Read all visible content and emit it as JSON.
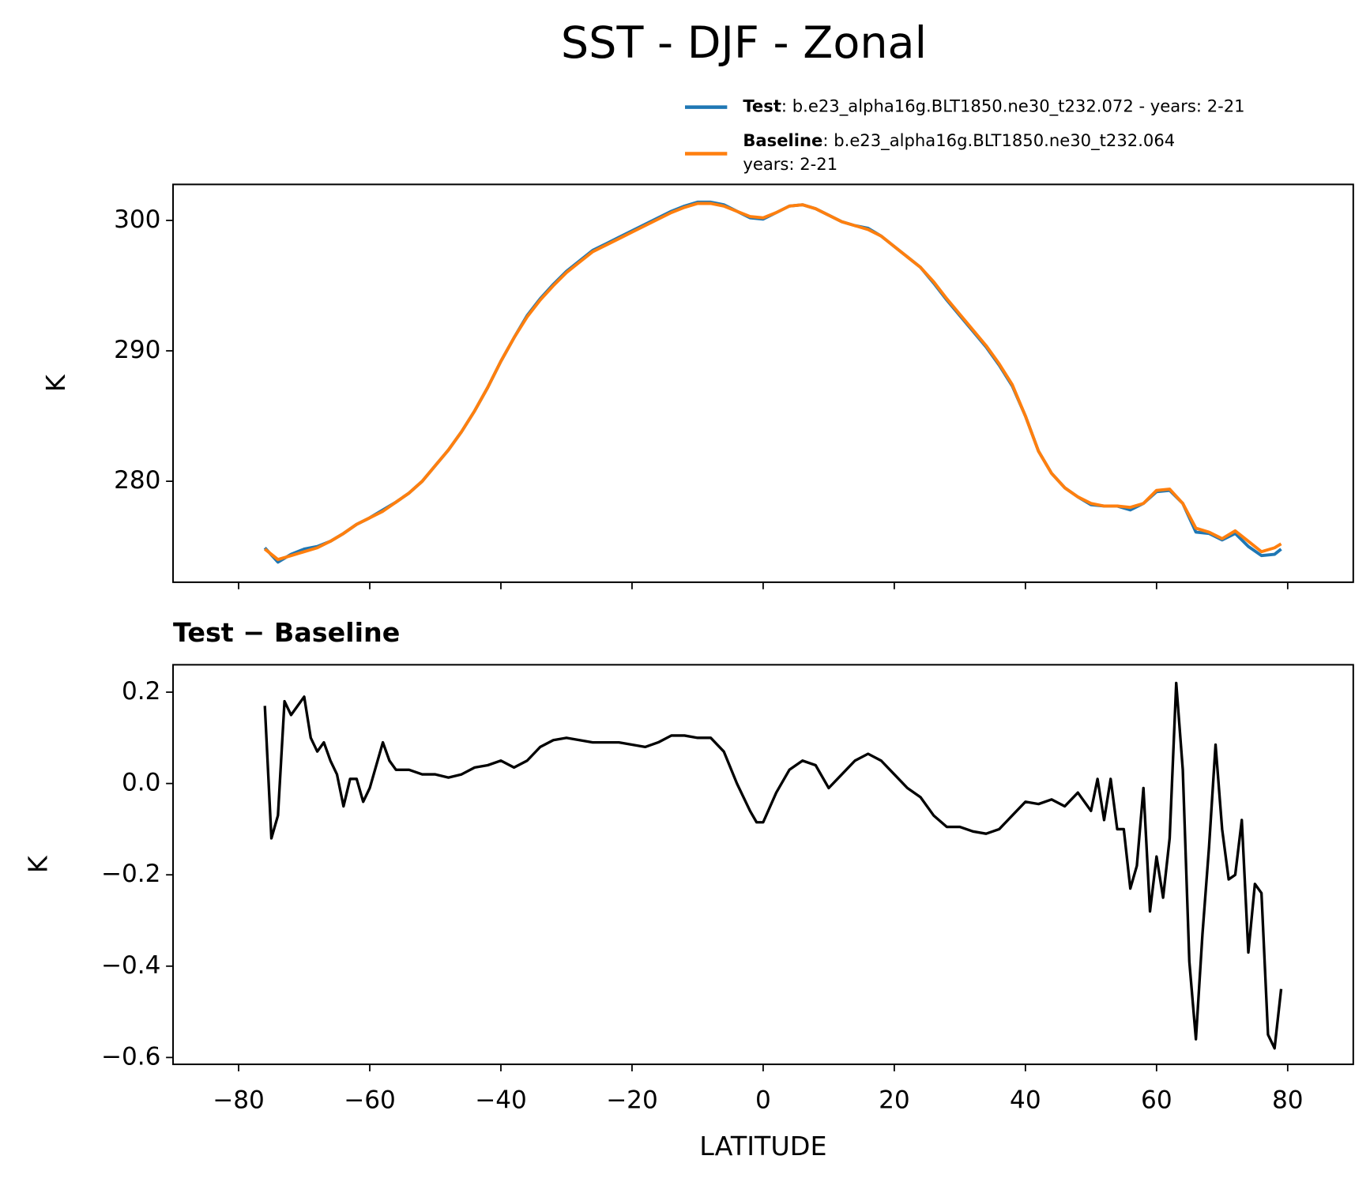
{
  "title": "SST - DJF - Zonal",
  "chart_data": [
    {
      "type": "line",
      "ylabel": "K",
      "xlim": [
        -90,
        90
      ],
      "ylim": [
        272.26,
        302.76
      ],
      "yticks": [
        280,
        290,
        300
      ],
      "x": [
        -76,
        -74,
        -72,
        -70,
        -68,
        -66,
        -64,
        -62,
        -60,
        -58,
        -56,
        -54,
        -52,
        -50,
        -48,
        -46,
        -44,
        -42,
        -40,
        -38,
        -36,
        -34,
        -32,
        -30,
        -28,
        -26,
        -24,
        -22,
        -20,
        -18,
        -16,
        -14,
        -12,
        -10,
        -8,
        -6,
        -4,
        -2,
        0,
        2,
        4,
        6,
        8,
        10,
        12,
        14,
        16,
        18,
        20,
        22,
        24,
        26,
        28,
        30,
        32,
        34,
        36,
        38,
        40,
        42,
        44,
        46,
        48,
        50,
        52,
        54,
        56,
        58,
        60,
        62,
        64,
        66,
        68,
        70,
        72,
        74,
        76,
        78,
        79
      ],
      "series": [
        {
          "name": "Test",
          "label": ": b.e23_alpha16g.BLT1850.ne30_t232.072 - years: 2-21",
          "color": "#1f77b4",
          "values": [
            274.9,
            273.8,
            274.4,
            274.8,
            275.0,
            275.4,
            276.0,
            276.7,
            277.2,
            277.8,
            278.4,
            279.1,
            280.0,
            281.2,
            282.4,
            283.8,
            285.4,
            287.2,
            289.2,
            291.0,
            292.7,
            294.0,
            295.1,
            296.1,
            296.9,
            297.7,
            298.2,
            298.7,
            299.2,
            299.7,
            300.2,
            300.7,
            301.1,
            301.4,
            301.4,
            301.2,
            300.7,
            300.2,
            300.1,
            300.6,
            301.1,
            301.2,
            300.9,
            300.4,
            299.9,
            299.6,
            299.4,
            298.8,
            298.0,
            297.2,
            296.4,
            295.2,
            293.9,
            292.7,
            291.5,
            290.3,
            288.9,
            287.3,
            285.0,
            282.3,
            280.6,
            279.5,
            278.8,
            278.2,
            278.1,
            278.1,
            277.8,
            278.3,
            279.2,
            279.3,
            278.3,
            276.1,
            276.0,
            275.5,
            276.0,
            275.0,
            274.3,
            274.4,
            274.8
          ]
        },
        {
          "name": "Baseline",
          "label": ": b.e23_alpha16g.BLT1850.ne30_t232.064",
          "label2": "years: 2-21",
          "color": "#ff7f0e",
          "values": [
            274.8,
            274.0,
            274.3,
            274.6,
            274.9,
            275.4,
            276.0,
            276.7,
            277.2,
            277.7,
            278.4,
            279.1,
            280.0,
            281.2,
            282.4,
            283.8,
            285.4,
            287.2,
            289.2,
            291.0,
            292.6,
            293.9,
            295.0,
            296.0,
            296.8,
            297.6,
            298.1,
            298.6,
            299.1,
            299.6,
            300.1,
            300.6,
            301.0,
            301.3,
            301.3,
            301.1,
            300.7,
            300.3,
            300.2,
            300.6,
            301.1,
            301.2,
            300.9,
            300.4,
            299.9,
            299.6,
            299.3,
            298.8,
            298.0,
            297.2,
            296.4,
            295.3,
            294.0,
            292.8,
            291.6,
            290.4,
            289.0,
            287.4,
            285.0,
            282.3,
            280.6,
            279.5,
            278.8,
            278.3,
            278.1,
            278.1,
            278.0,
            278.3,
            279.3,
            279.4,
            278.3,
            276.4,
            276.1,
            275.6,
            276.2,
            275.4,
            274.6,
            274.9,
            275.2
          ]
        }
      ]
    },
    {
      "type": "line",
      "title": "Test − Baseline",
      "ylabel": "K",
      "xlabel": "LATITUDE",
      "xlim": [
        -90,
        90
      ],
      "ylim": [
        -0.615,
        0.26
      ],
      "xticks": [
        {
          "value": -80,
          "label": "−80"
        },
        {
          "value": -60,
          "label": "−60"
        },
        {
          "value": -40,
          "label": "−40"
        },
        {
          "value": -20,
          "label": "−20"
        },
        0,
        20,
        40,
        60,
        80
      ],
      "yticks": [
        {
          "value": -0.6,
          "label": "−0.6"
        },
        {
          "value": -0.4,
          "label": "−0.4"
        },
        {
          "value": -0.2,
          "label": "−0.2"
        },
        {
          "value": 0,
          "label": "0.0"
        },
        0.2
      ],
      "x": [
        -76,
        -75,
        -74,
        -73,
        -72,
        -71,
        -70,
        -69,
        -68,
        -67,
        -66,
        -65,
        -64,
        -63,
        -62,
        -61,
        -60,
        -58,
        -57,
        -56,
        -54,
        -52,
        -50,
        -48,
        -46,
        -44,
        -42,
        -40,
        -38,
        -36,
        -34,
        -32,
        -30,
        -28,
        -26,
        -24,
        -22,
        -20,
        -18,
        -16,
        -14,
        -12,
        -10,
        -8,
        -6,
        -4,
        -2,
        -1,
        0,
        2,
        4,
        6,
        8,
        10,
        12,
        14,
        16,
        18,
        20,
        22,
        24,
        26,
        28,
        30,
        32,
        34,
        36,
        38,
        40,
        42,
        44,
        46,
        48,
        50,
        51,
        52,
        53,
        54,
        55,
        56,
        57,
        58,
        59,
        60,
        61,
        62,
        63,
        64,
        65,
        66,
        67,
        68,
        69,
        70,
        71,
        72,
        73,
        74,
        75,
        76,
        77,
        78,
        79
      ],
      "series": [
        {
          "name": "Test − Baseline",
          "color": "#000000",
          "values": [
            0.17,
            -0.12,
            -0.07,
            0.18,
            0.15,
            0.17,
            0.19,
            0.1,
            0.07,
            0.09,
            0.05,
            0.02,
            -0.05,
            0.01,
            0.01,
            -0.04,
            -0.01,
            0.09,
            0.05,
            0.03,
            0.03,
            0.02,
            0.02,
            0.013,
            0.02,
            0.035,
            0.04,
            0.05,
            0.035,
            0.05,
            0.08,
            0.095,
            0.1,
            0.095,
            0.09,
            0.09,
            0.09,
            0.085,
            0.08,
            0.09,
            0.105,
            0.105,
            0.1,
            0.1,
            0.07,
            0.0,
            -0.06,
            -0.085,
            -0.085,
            -0.02,
            0.03,
            0.05,
            0.04,
            -0.01,
            0.02,
            0.05,
            0.065,
            0.05,
            0.02,
            -0.01,
            -0.03,
            -0.07,
            -0.095,
            -0.095,
            -0.105,
            -0.11,
            -0.1,
            -0.07,
            -0.04,
            -0.045,
            -0.035,
            -0.05,
            -0.02,
            -0.06,
            0.01,
            -0.08,
            0.01,
            -0.1,
            -0.1,
            -0.23,
            -0.18,
            -0.01,
            -0.28,
            -0.16,
            -0.25,
            -0.12,
            0.22,
            0.03,
            -0.39,
            -0.56,
            -0.33,
            -0.14,
            0.085,
            -0.1,
            -0.21,
            -0.2,
            -0.08,
            -0.37,
            -0.22,
            -0.24,
            -0.55,
            -0.58,
            -0.45
          ]
        }
      ]
    }
  ]
}
